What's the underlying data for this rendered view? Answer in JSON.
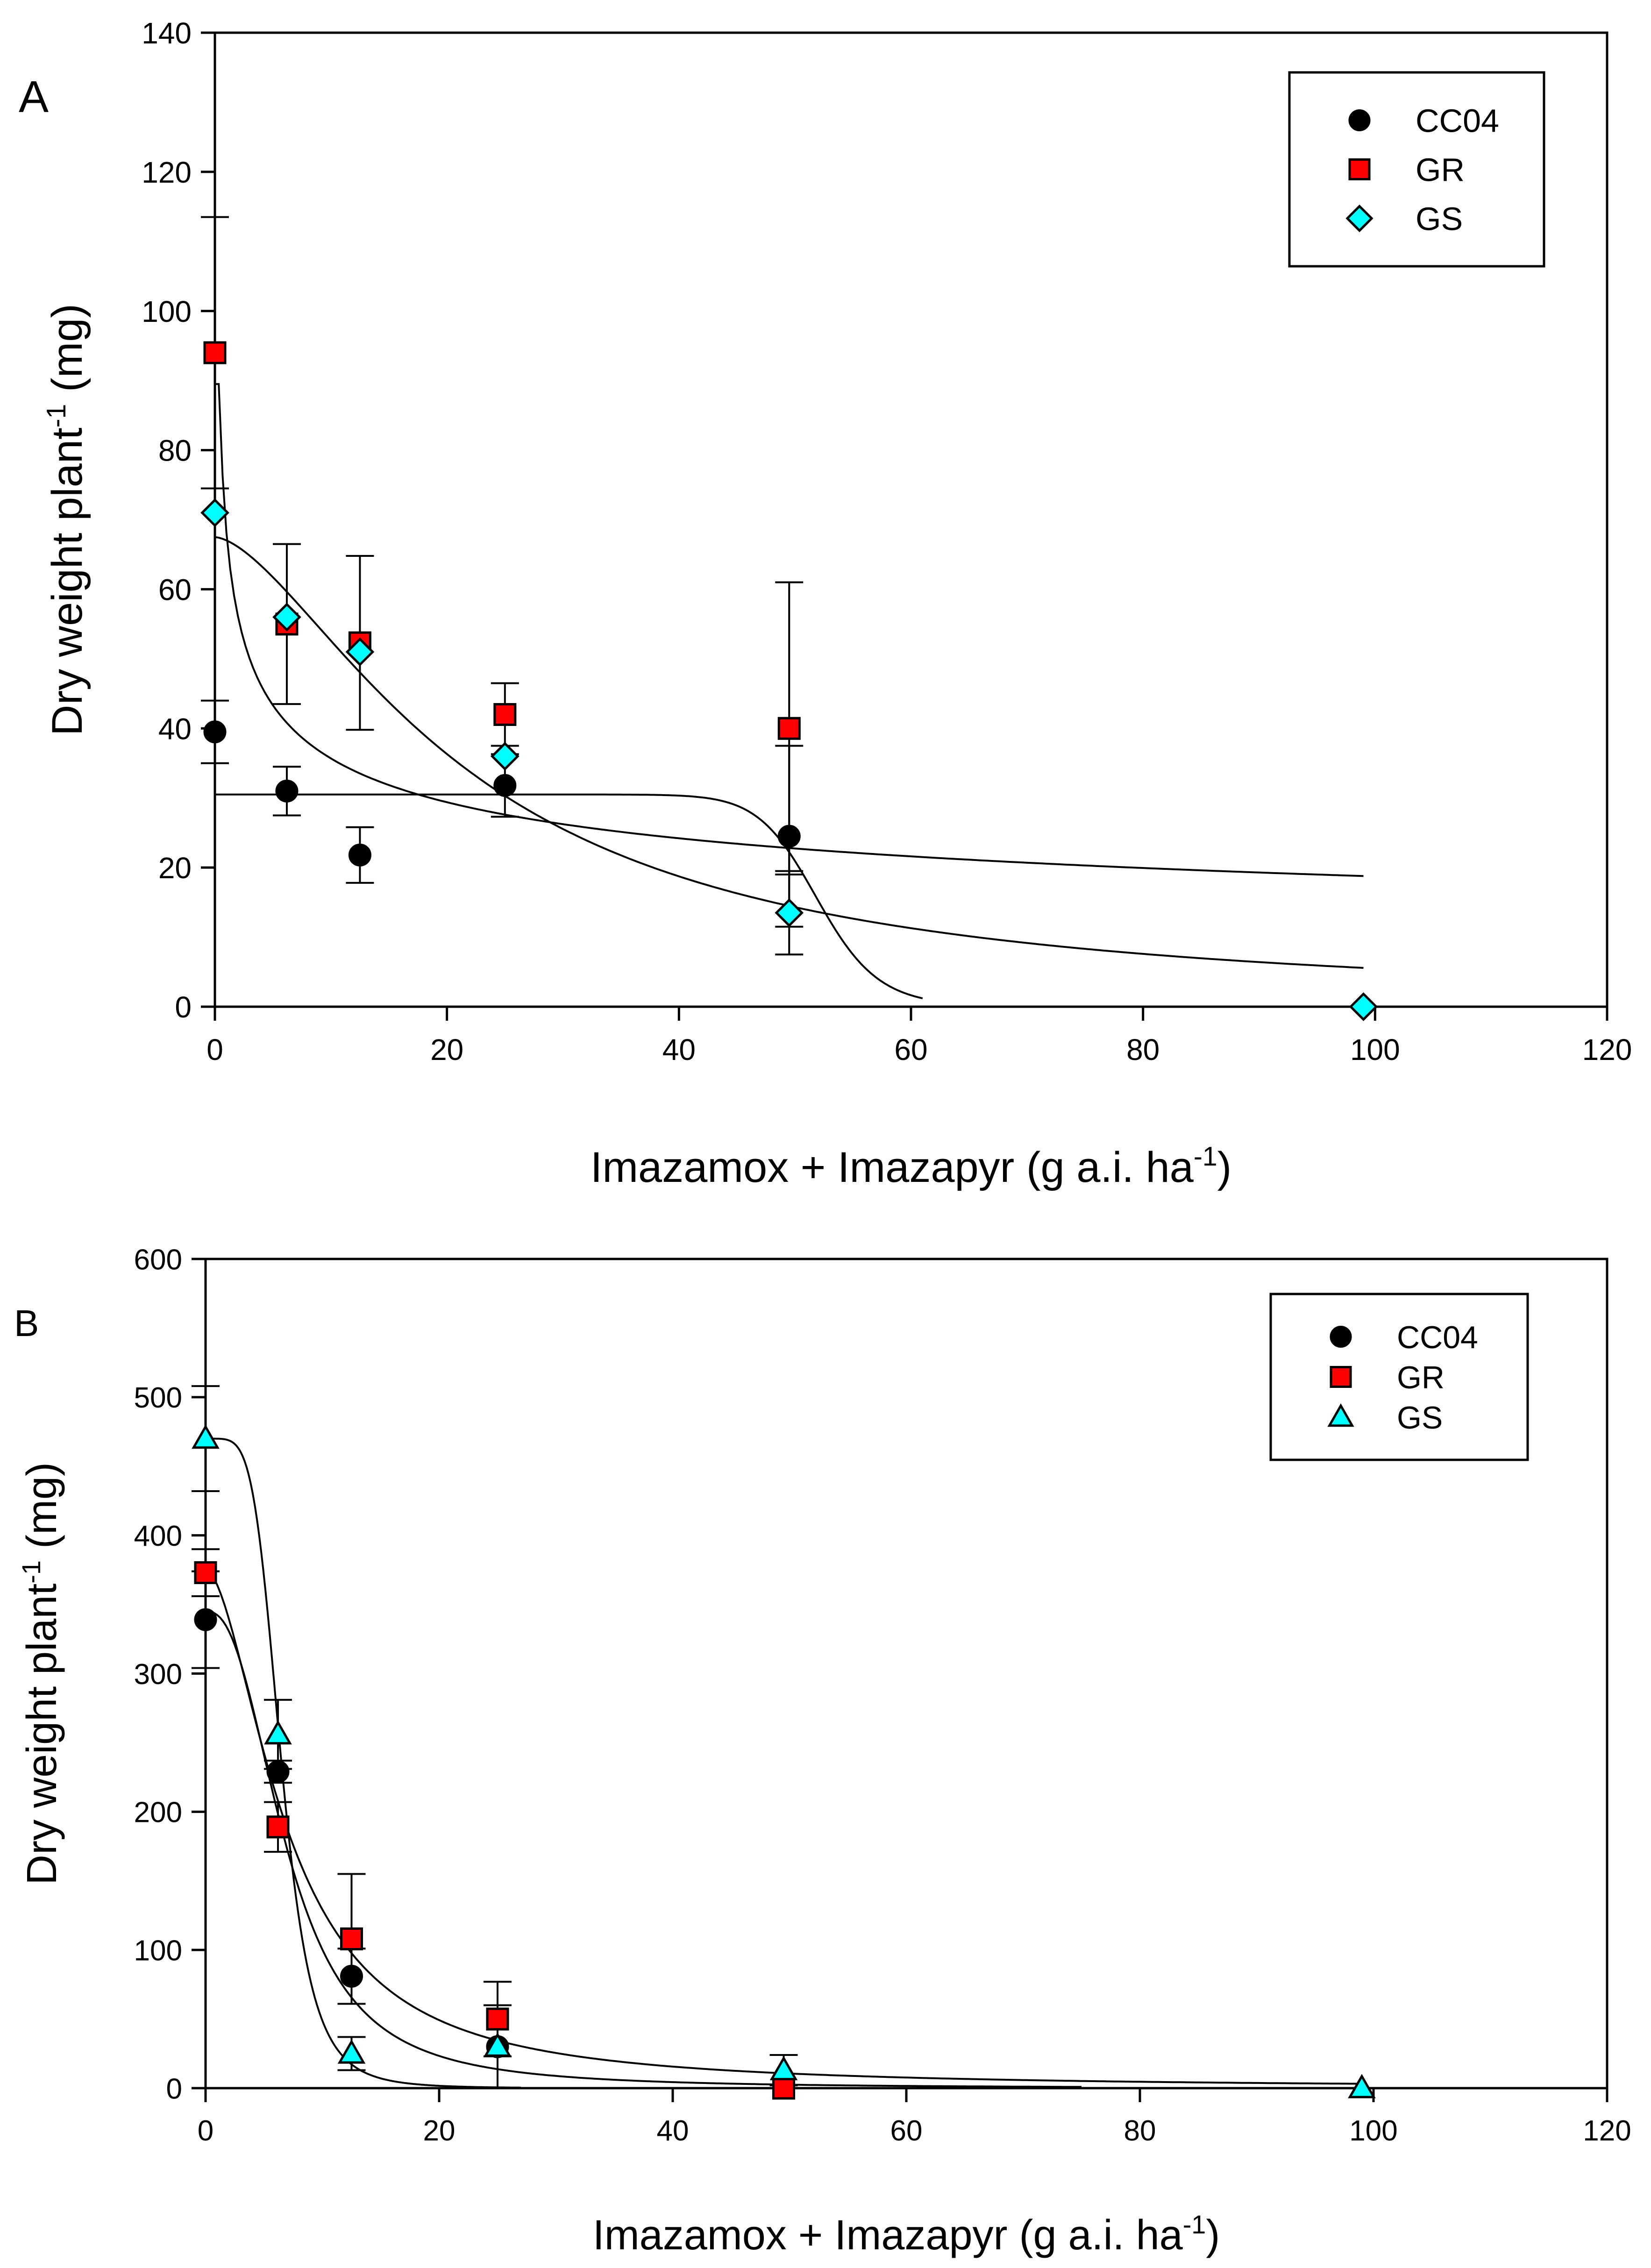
{
  "colors": {
    "CC04": "#000000",
    "GR": "#ff0000",
    "GS": "#00ffff",
    "axis": "#000000"
  },
  "chart_data": [
    {
      "panel_label": "A",
      "type": "scatter",
      "xlabel": "Imazamox + Imazapyr (g a.i. ha",
      "xlabel_sup": "-1",
      "xlabel_end": ")",
      "ylabel": "Dry weight plant",
      "ylabel_sup": "-1",
      "ylabel_end": " (mg)",
      "xlim": [
        0,
        120
      ],
      "ylim": [
        0,
        140
      ],
      "xticks": [
        0,
        20,
        40,
        60,
        80,
        100,
        120
      ],
      "yticks": [
        0,
        20,
        40,
        60,
        80,
        100,
        120,
        140
      ],
      "legend": {
        "position": "top-right",
        "entries": [
          "CC04",
          "GR",
          "GS"
        ]
      },
      "series": [
        {
          "name": "CC04",
          "marker": "circle",
          "points": [
            [
              0,
              39.5,
              4.5
            ],
            [
              6.2,
              31,
              3.5
            ],
            [
              12.5,
              21.8,
              4
            ],
            [
              25,
              31.8,
              4.5
            ],
            [
              49.5,
              24.5,
              13
            ]
          ],
          "curve": {
            "model": "log-logistic",
            "upper": 30.5,
            "ed50": 52,
            "slope": 20,
            "xmax": 61
          }
        },
        {
          "name": "GR",
          "marker": "square",
          "points": [
            [
              0,
              94,
              19.5
            ],
            [
              6.2,
              55,
              11.5
            ],
            [
              12.5,
              52.3,
              12.5
            ],
            [
              25,
              42,
              4.5
            ],
            [
              49.5,
              40,
              21
            ]
          ],
          "curve": {
            "model": "power",
            "upper": 89.5,
            "a": 68,
            "b": 0.28,
            "xmax": 99
          }
        },
        {
          "name": "GS",
          "marker": "diamond",
          "points": [
            [
              0,
              71,
              0
            ],
            [
              6.2,
              56,
              0
            ],
            [
              12.5,
              51,
              0
            ],
            [
              25,
              36,
              0
            ],
            [
              49.5,
              13.5,
              6
            ],
            [
              99,
              0,
              0
            ]
          ],
          "curve": {
            "model": "log-logistic",
            "upper": 67.5,
            "ed50": 22,
            "slope": 1.6,
            "xmax": 99
          }
        }
      ]
    },
    {
      "panel_label": "B",
      "type": "scatter",
      "xlabel": "Imazamox + Imazapyr (g a.i. ha",
      "xlabel_sup": "-1",
      "xlabel_end": ")",
      "ylabel": "Dry weight plant",
      "ylabel_sup": "-1",
      "ylabel_end": " (mg)",
      "xlim": [
        0,
        120
      ],
      "ylim": [
        0,
        600
      ],
      "xticks": [
        0,
        20,
        40,
        60,
        80,
        100,
        120
      ],
      "yticks": [
        0,
        100,
        200,
        300,
        400,
        500,
        600
      ],
      "legend": {
        "position": "top-right",
        "entries": [
          "CC04",
          "GR",
          "GS"
        ]
      },
      "series": [
        {
          "name": "CC04",
          "marker": "circle",
          "points": [
            [
              0,
              339,
              35
            ],
            [
              6.2,
              229,
              8
            ],
            [
              12.5,
              81,
              20
            ],
            [
              25,
              30,
              30
            ],
            [
              49.5,
              3,
              0
            ]
          ],
          "curve": {
            "model": "log-logistic",
            "upper": 345,
            "ed50": 7,
            "slope": 2.5,
            "xmax": 75
          }
        },
        {
          "name": "GR",
          "marker": "square",
          "points": [
            [
              0,
              373,
              17
            ],
            [
              6.2,
              189,
              18
            ],
            [
              12.5,
              108,
              47
            ],
            [
              25,
              50,
              27
            ],
            [
              49.5,
              0,
              0
            ]
          ],
          "curve": {
            "model": "log-logistic",
            "upper": 375,
            "ed50": 7,
            "slope": 1.8,
            "xmax": 99
          }
        },
        {
          "name": "GS",
          "marker": "triangle",
          "points": [
            [
              0,
              470,
              38
            ],
            [
              6.2,
              256,
              25
            ],
            [
              12.5,
              25,
              12
            ],
            [
              25,
              30,
              0
            ],
            [
              49.5,
              13,
              11
            ],
            [
              99,
              0,
              0
            ]
          ],
          "curve": {
            "model": "log-logistic",
            "upper": 470,
            "ed50": 6.5,
            "slope": 5,
            "xmax": 27
          }
        }
      ]
    }
  ]
}
